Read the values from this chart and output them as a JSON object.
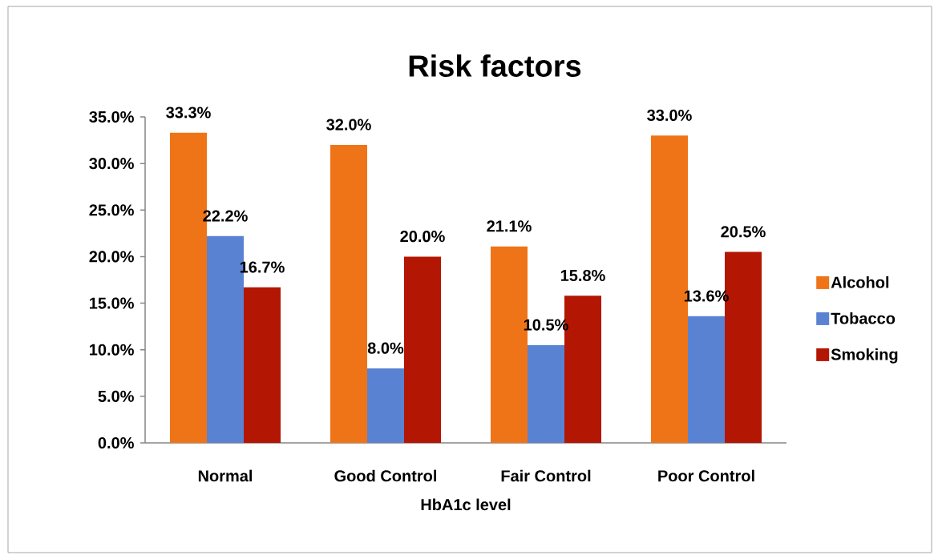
{
  "chart_data": {
    "type": "bar",
    "title": "Risk factors",
    "xlabel": "HbA1c level",
    "categories": [
      "Normal",
      "Good Control",
      "Fair Control",
      "Poor Control"
    ],
    "series": [
      {
        "name": "Alcohol",
        "color": "#ef7417",
        "values": [
          33.3,
          32.0,
          21.1,
          33.0
        ],
        "value_labels": [
          "33.3%",
          "32.0%",
          "21.1%",
          "33.0%"
        ]
      },
      {
        "name": "Tobacco",
        "color": "#5a82d2",
        "values": [
          22.2,
          8.0,
          10.5,
          13.6
        ],
        "value_labels": [
          "22.2%",
          "8.0%",
          "10.5%",
          "13.6%"
        ]
      },
      {
        "name": "Smoking",
        "color": "#b31603",
        "values": [
          16.7,
          20.0,
          15.8,
          20.5
        ],
        "value_labels": [
          "16.7%",
          "20.0%",
          "15.8%",
          "20.5%"
        ]
      }
    ],
    "ylim": [
      0,
      35
    ],
    "yticks": [
      {
        "value": 0,
        "label": "0.0%"
      },
      {
        "value": 5,
        "label": "5.0%"
      },
      {
        "value": 10,
        "label": "10.0%"
      },
      {
        "value": 15,
        "label": "15.0%"
      },
      {
        "value": 20,
        "label": "20.0%"
      },
      {
        "value": 25,
        "label": "25.0%"
      },
      {
        "value": 30,
        "label": "30.0%"
      },
      {
        "value": 35,
        "label": "35.0%"
      }
    ],
    "legend": "right"
  }
}
